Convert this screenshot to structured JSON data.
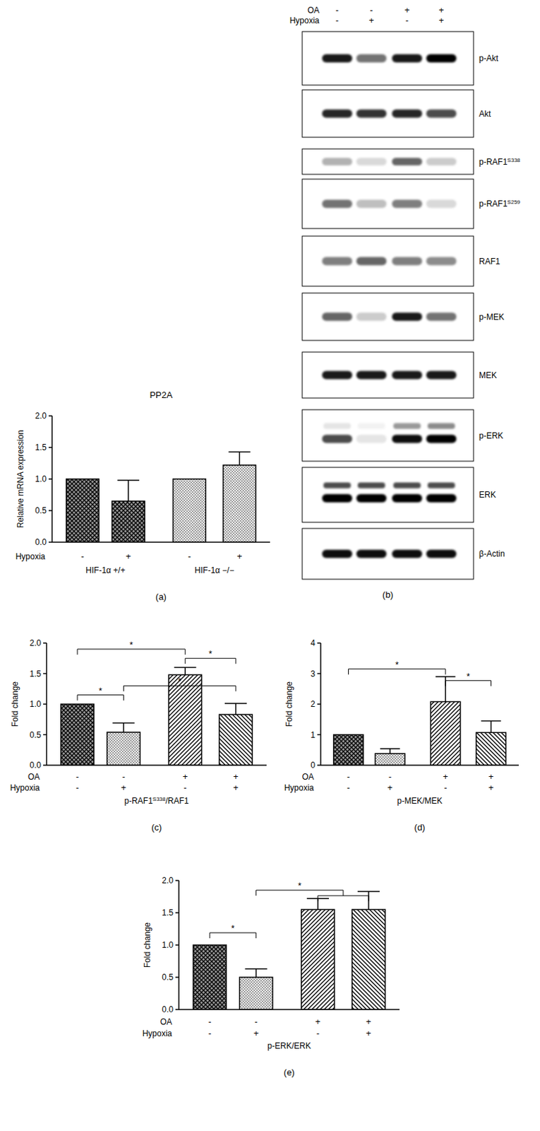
{
  "chart_data": [
    {
      "type": "bar",
      "title": "PP2A",
      "ylabel": "Relative mRNA expression",
      "panel": "(a)",
      "color": "#000000",
      "values": [
        1.0,
        0.65,
        1.0,
        1.22
      ],
      "errors": [
        null,
        0.33,
        null,
        0.21
      ],
      "x_rows": [
        {
          "label": "Hypoxia",
          "values": [
            "-",
            "+",
            "-",
            "+"
          ]
        }
      ],
      "groups": [
        {
          "label": "HIF-1α +/+",
          "members": [
            0,
            1
          ]
        },
        {
          "label": "HIF-1α −/−",
          "members": [
            2,
            3
          ]
        }
      ],
      "ylim": [
        0,
        2
      ],
      "yticks": [
        {
          "value": 0,
          "label": "0.0"
        },
        {
          "value": 0.5,
          "label": "0.5"
        },
        {
          "value": 1,
          "label": "1.0"
        },
        {
          "value": 1.5,
          "label": "1.5"
        },
        {
          "value": 2,
          "label": "2.0"
        }
      ],
      "grid": false
    },
    {
      "type": "bar",
      "ylabel": "Fold change",
      "panel": "(c)",
      "color": "#000000",
      "xlabel_parts": [
        {
          "text": "p-RAF1"
        },
        {
          "text": "S338",
          "sup": true
        },
        {
          "text": "/RAF1"
        }
      ],
      "values": [
        1.0,
        0.54,
        1.48,
        0.83
      ],
      "errors": [
        null,
        0.15,
        0.12,
        0.18
      ],
      "x_rows": [
        {
          "label": "OA",
          "values": [
            "-",
            "-",
            "+",
            "+"
          ]
        },
        {
          "label": "Hypoxia",
          "values": [
            "-",
            "+",
            "-",
            "+"
          ]
        }
      ],
      "significance": [
        {
          "from": [
            0
          ],
          "to": [
            1
          ],
          "y": 1.15,
          "label": "*"
        },
        {
          "from": [
            0
          ],
          "to": [
            2
          ],
          "y": 1.9,
          "label": "*"
        },
        {
          "from": [
            2
          ],
          "to": [
            3
          ],
          "y": 1.75,
          "label": "*"
        },
        {
          "from": [
            1
          ],
          "to": [
            3
          ],
          "y": 1.3,
          "label": "*"
        }
      ],
      "ylim": [
        0,
        2
      ],
      "yticks": [
        {
          "value": 0,
          "label": "0.0"
        },
        {
          "value": 0.5,
          "label": "0.5"
        },
        {
          "value": 1,
          "label": "1.0"
        },
        {
          "value": 1.5,
          "label": "1.5"
        },
        {
          "value": 2,
          "label": "2.0"
        }
      ],
      "grid": false
    },
    {
      "type": "bar",
      "ylabel": "Fold change",
      "panel": "(d)",
      "color": "#000000",
      "xlabel_parts": [
        {
          "text": "p-MEK/MEK"
        }
      ],
      "values": [
        1.0,
        0.38,
        2.08,
        1.07
      ],
      "errors": [
        null,
        0.16,
        0.82,
        0.38
      ],
      "x_rows": [
        {
          "label": "OA",
          "values": [
            "-",
            "-",
            "+",
            "+"
          ]
        },
        {
          "label": "Hypoxia",
          "values": [
            "-",
            "+",
            "-",
            "+"
          ]
        }
      ],
      "significance": [
        {
          "from": [
            0
          ],
          "to": [
            2
          ],
          "y": 3.15,
          "label": "*"
        },
        {
          "from": [
            2
          ],
          "to": [
            3
          ],
          "y": 2.77,
          "label": "*"
        }
      ],
      "ylim": [
        0,
        4
      ],
      "yticks": [
        0,
        1,
        2,
        3,
        4
      ],
      "grid": false
    },
    {
      "type": "bar",
      "ylabel": "Fold change",
      "panel": "(e)",
      "color": "#000000",
      "xlabel_parts": [
        {
          "text": "p-ERK/ERK"
        }
      ],
      "values": [
        1.0,
        0.5,
        1.55,
        1.55
      ],
      "errors": [
        null,
        0.13,
        0.17,
        0.28
      ],
      "x_rows": [
        {
          "label": "OA",
          "values": [
            "-",
            "-",
            "+",
            "+"
          ]
        },
        {
          "label": "Hypoxia",
          "values": [
            "-",
            "+",
            "-",
            "+"
          ]
        }
      ],
      "significance": [
        {
          "from": [
            0
          ],
          "to": [
            1
          ],
          "y": 1.19,
          "label": "*"
        },
        {
          "from": [
            1
          ],
          "to": [
            2,
            3
          ],
          "y": 1.85,
          "label": "*"
        }
      ],
      "ylim": [
        0,
        2
      ],
      "yticks": [
        {
          "value": 0,
          "label": "0.0"
        },
        {
          "value": 0.5,
          "label": "0.5"
        },
        {
          "value": 1,
          "label": "1.0"
        },
        {
          "value": 1.5,
          "label": "1.5"
        },
        {
          "value": 2,
          "label": "2.0"
        }
      ],
      "grid": false
    }
  ],
  "blot": {
    "panel": "(b)",
    "conditions": [
      {
        "label": "OA",
        "values": [
          "-",
          "-",
          "+",
          "+"
        ]
      },
      {
        "label": "Hypoxia",
        "values": [
          "-",
          "+",
          "-",
          "+"
        ]
      }
    ],
    "rows": [
      {
        "label_parts": [
          {
            "text": "p-Akt"
          }
        ],
        "intensity": [
          0.9,
          0.55,
          0.9,
          1.0
        ]
      },
      {
        "label_parts": [
          {
            "text": "Akt"
          }
        ],
        "intensity": [
          0.85,
          0.8,
          0.85,
          0.7
        ]
      },
      {
        "label_parts": [
          {
            "text": "p-RAF1"
          },
          {
            "text": "S338",
            "sup": true
          }
        ],
        "intensity": [
          0.3,
          0.15,
          0.6,
          0.2
        ]
      },
      {
        "label_parts": [
          {
            "text": "p-RAF1"
          },
          {
            "text": "S259",
            "sup": true
          }
        ],
        "intensity": [
          0.55,
          0.25,
          0.5,
          0.15
        ]
      },
      {
        "label_parts": [
          {
            "text": "RAF1"
          }
        ],
        "intensity": [
          0.5,
          0.6,
          0.5,
          0.45
        ]
      },
      {
        "label_parts": [
          {
            "text": "p-MEK"
          }
        ],
        "intensity": [
          0.6,
          0.2,
          0.9,
          0.55
        ]
      },
      {
        "label_parts": [
          {
            "text": "MEK"
          }
        ],
        "intensity": [
          0.9,
          0.9,
          0.9,
          0.9
        ]
      },
      {
        "label_parts": [
          {
            "text": "p-ERK"
          }
        ],
        "intensity": [
          0.7,
          0.1,
          0.95,
          1.0
        ],
        "upper_intensity": [
          0.1,
          0.05,
          0.4,
          0.45
        ]
      },
      {
        "label_parts": [
          {
            "text": "ERK"
          }
        ],
        "intensity": [
          1.0,
          1.0,
          1.0,
          1.0
        ],
        "upper_intensity": [
          0.7,
          0.7,
          0.7,
          0.7
        ]
      },
      {
        "label_parts": [
          {
            "text": "β-Actin"
          }
        ],
        "intensity": [
          0.95,
          0.95,
          0.95,
          0.95
        ]
      }
    ]
  }
}
